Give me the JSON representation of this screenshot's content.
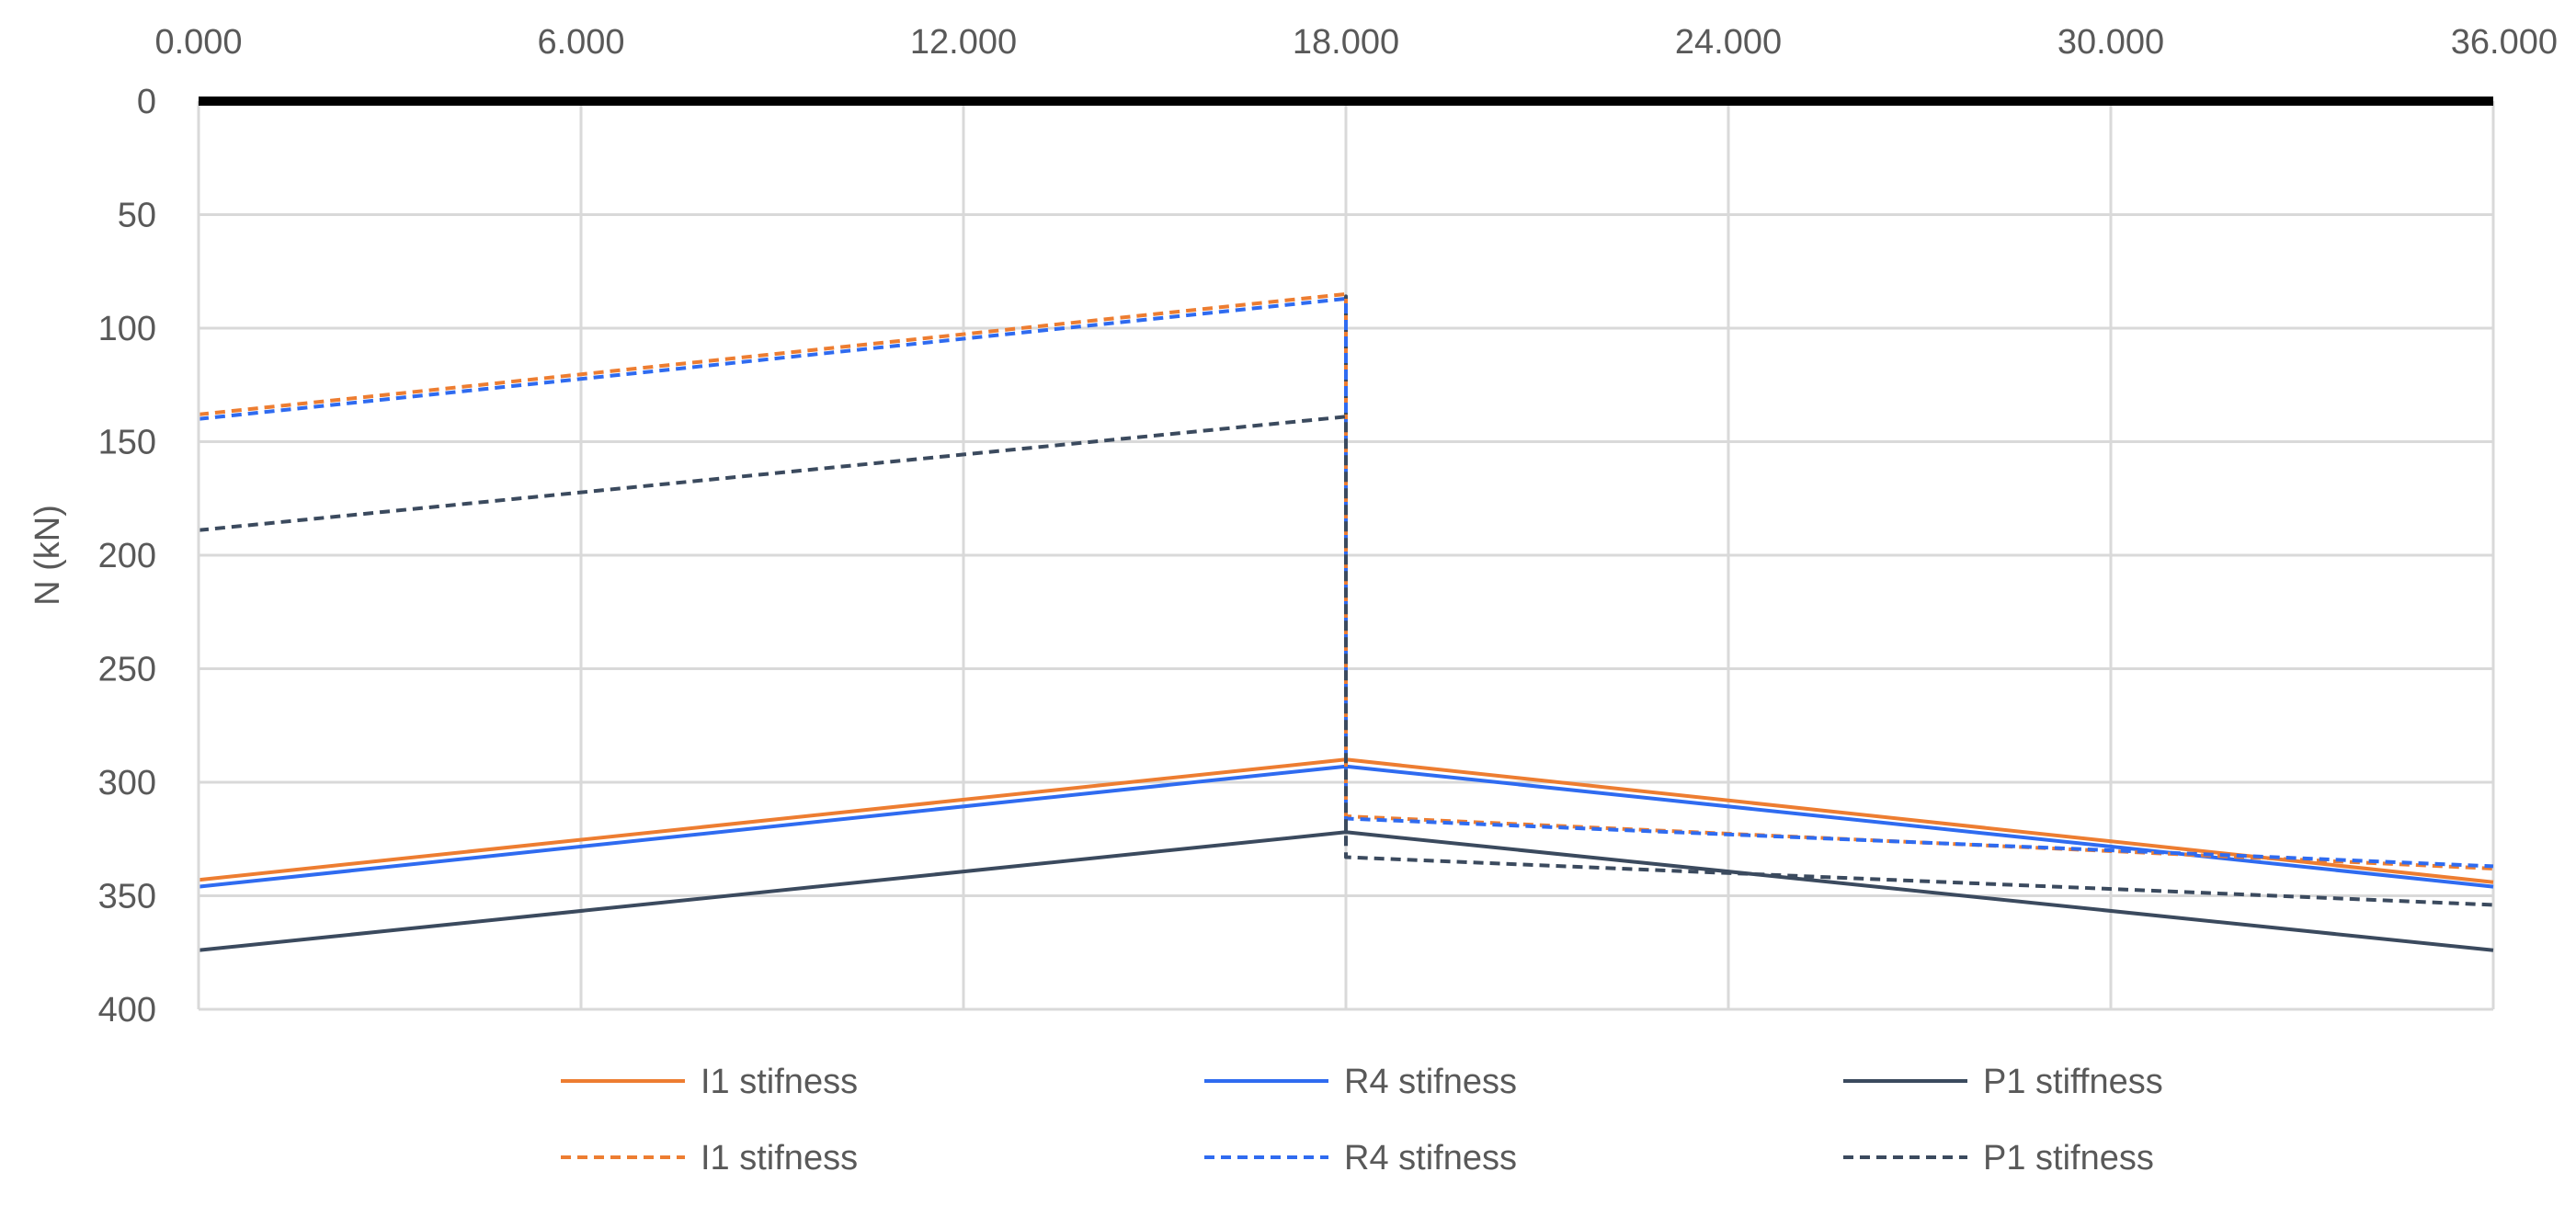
{
  "chart_data": {
    "type": "line",
    "title": "",
    "xlabel": "",
    "ylabel": "N (kN)",
    "x_axis_position": "top",
    "y_axis_inverted": true,
    "xlim": [
      0,
      36
    ],
    "ylim": [
      0,
      400
    ],
    "x_ticks": [
      "0.000",
      "6.000",
      "12.000",
      "18.000",
      "24.000",
      "30.000",
      "36.000"
    ],
    "x_tick_values": [
      0,
      6,
      12,
      18,
      24,
      30,
      36
    ],
    "y_ticks": [
      "0",
      "50",
      "100",
      "150",
      "200",
      "250",
      "300",
      "350",
      "400"
    ],
    "y_tick_values": [
      0,
      50,
      100,
      150,
      200,
      250,
      300,
      350,
      400
    ],
    "grid": true,
    "legend_position": "bottom",
    "series": [
      {
        "name": "I1 stifness",
        "color": "#ED7D31",
        "dash": "solid",
        "points": [
          [
            0,
            343
          ],
          [
            18,
            290
          ],
          [
            36,
            344
          ]
        ]
      },
      {
        "name": "R4 stifness",
        "color": "#2F6BF0",
        "dash": "solid",
        "points": [
          [
            0,
            346
          ],
          [
            18,
            293
          ],
          [
            36,
            346
          ]
        ]
      },
      {
        "name": "P1 stiffness",
        "color": "#3B4A5E",
        "dash": "solid",
        "points": [
          [
            0,
            374
          ],
          [
            18,
            322
          ],
          [
            18,
            86
          ],
          [
            18,
            322
          ],
          [
            36,
            374
          ]
        ]
      },
      {
        "name": "I1 stifness",
        "color": "#ED7D31",
        "dash": "dashed",
        "points": [
          [
            0,
            138
          ],
          [
            18,
            85
          ],
          [
            18,
            315
          ],
          [
            36,
            338
          ]
        ]
      },
      {
        "name": "R4 stifness",
        "color": "#2F6BF0",
        "dash": "dashed",
        "points": [
          [
            0,
            140
          ],
          [
            18,
            87
          ],
          [
            18,
            316
          ],
          [
            36,
            337
          ]
        ]
      },
      {
        "name": "P1 stifness",
        "color": "#3B4A5E",
        "dash": "dashed",
        "points": [
          [
            0,
            189
          ],
          [
            18,
            139
          ],
          [
            18,
            333
          ],
          [
            36,
            354
          ]
        ]
      }
    ]
  }
}
